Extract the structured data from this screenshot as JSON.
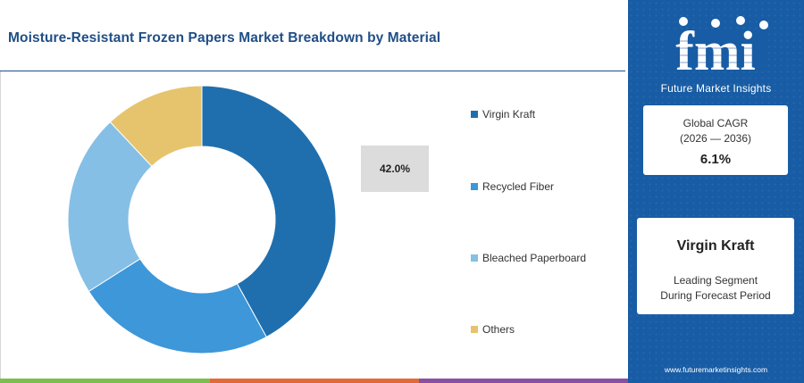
{
  "title": "Moisture-Resistant Frozen Papers Market Breakdown by Material",
  "chart_data": {
    "type": "pie",
    "donut": true,
    "categories": [
      "Virgin Kraft",
      "Recycled Fiber",
      "Bleached Paperboard",
      "Others"
    ],
    "values": [
      42.0,
      24.0,
      22.0,
      12.0
    ],
    "colors": [
      "#1f6fae",
      "#3d97d9",
      "#85bfe6",
      "#e6c46e"
    ],
    "title": "Moisture-Resistant Frozen Papers Market Breakdown by Material",
    "callout": "42.0%",
    "legend_position": "right"
  },
  "brand": {
    "logo_text": "fmi",
    "name": "Future Market Insights",
    "website": "www.futuremarketinsights.com",
    "panel_color": "#175ca4"
  },
  "cagr": {
    "label": "Global CAGR",
    "period": "(2026 — 2036)",
    "value": "6.1%"
  },
  "segment": {
    "name": "Virgin Kraft",
    "line1": "Leading Segment",
    "line2": "During Forecast Period"
  }
}
